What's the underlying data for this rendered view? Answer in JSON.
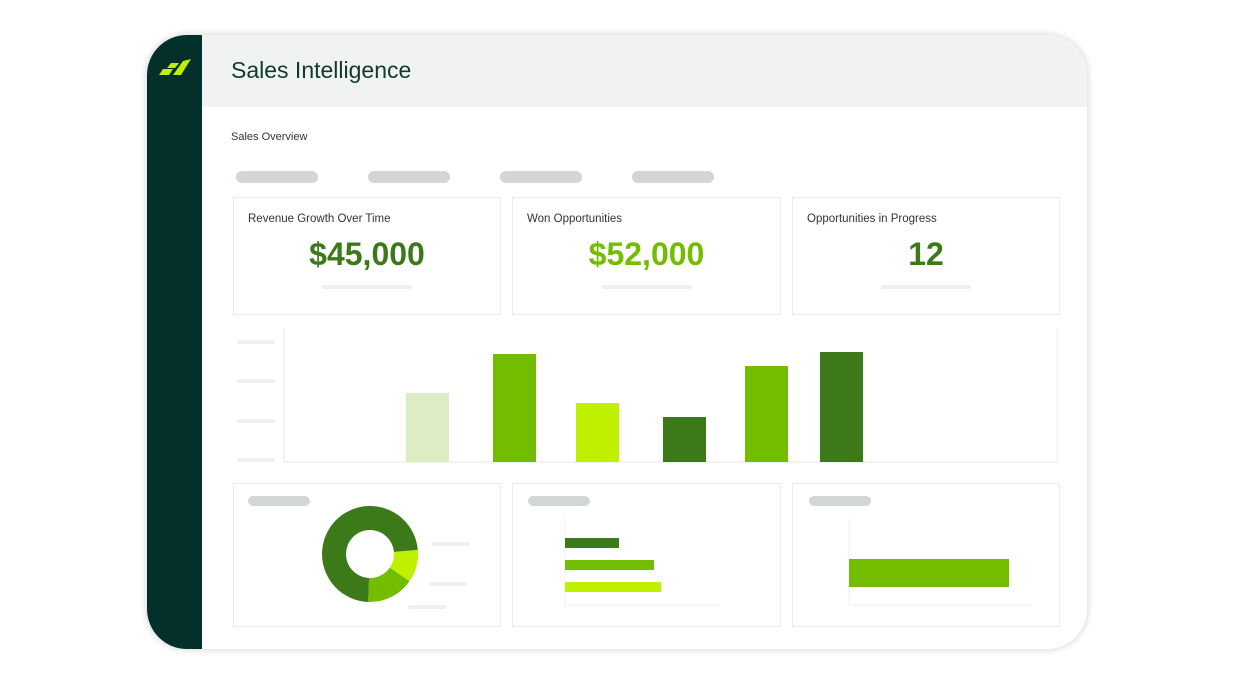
{
  "header": {
    "title": "Sales Intelligence"
  },
  "section": {
    "title": "Sales Overview"
  },
  "kpis": [
    {
      "label": "Revenue Growth Over Time",
      "value": "$45,000",
      "color": "#3c7a19"
    },
    {
      "label": "Won Opportunities",
      "value": "$52,000",
      "color": "#73bd00"
    },
    {
      "label": "Opportunities in Progress",
      "value": "12",
      "color": "#3c7a19"
    }
  ],
  "colors": {
    "sidebar": "#03302a",
    "dark_green": "#3c7a19",
    "green": "#73bd00",
    "lime": "#bef000",
    "pale": "#dcedc4"
  },
  "chart_data": [
    {
      "type": "bar",
      "values": [
        69,
        108,
        59,
        45,
        96,
        110
      ],
      "colors": [
        "#dcedc4",
        "#73bd00",
        "#bef000",
        "#3c7a19",
        "#73bd00",
        "#3c7a19"
      ],
      "ylim": [
        0,
        134
      ]
    },
    {
      "type": "pie",
      "values": [
        73,
        11,
        16
      ],
      "colors": [
        "#3c7a19",
        "#bef000",
        "#73bd00"
      ]
    },
    {
      "type": "bar",
      "orientation": "horizontal",
      "values": [
        54,
        89,
        96
      ],
      "colors": [
        "#3c7a19",
        "#73bd00",
        "#bef000"
      ],
      "xlim": [
        0,
        155
      ]
    },
    {
      "type": "bar",
      "orientation": "horizontal",
      "values": [
        160
      ],
      "colors": [
        "#73bd00"
      ],
      "xlim": [
        0,
        183
      ]
    }
  ]
}
